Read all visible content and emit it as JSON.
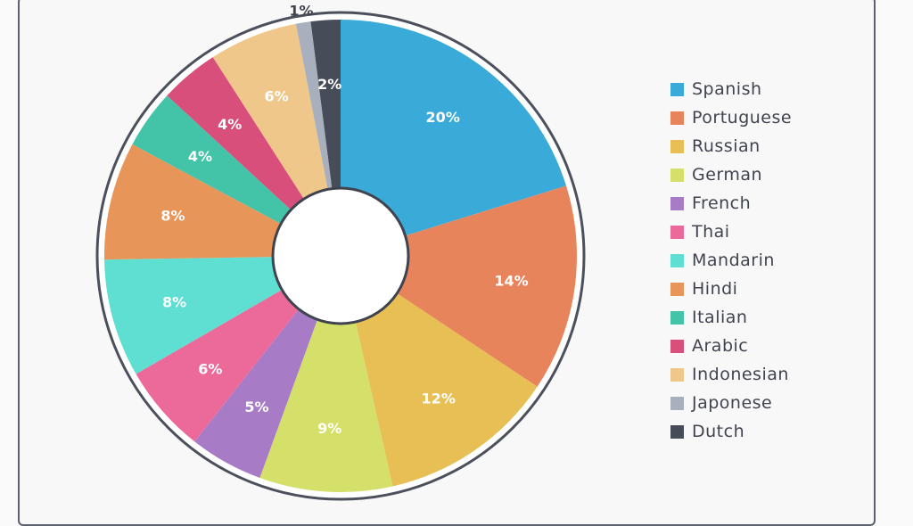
{
  "chart_data": {
    "type": "pie",
    "style": "donut",
    "title": "",
    "legend_position": "right",
    "start": "top, clockwise",
    "slices": [
      {
        "name": "Spanish",
        "value": 20,
        "label": "20%",
        "color": "#3aaad8"
      },
      {
        "name": "Portuguese",
        "value": 14,
        "label": "14%",
        "color": "#e8845c"
      },
      {
        "name": "Russian",
        "value": 12,
        "label": "12%",
        "color": "#e8bf55"
      },
      {
        "name": "German",
        "value": 9,
        "label": "9%",
        "color": "#d4e06a"
      },
      {
        "name": "French",
        "value": 5,
        "label": "5%",
        "color": "#a77bc6"
      },
      {
        "name": "Thai",
        "value": 6,
        "label": "6%",
        "color": "#ec6a9a"
      },
      {
        "name": "Mandarin",
        "value": 8,
        "label": "8%",
        "color": "#5fded2"
      },
      {
        "name": "Hindi",
        "value": 8,
        "label": "8%",
        "color": "#e8955a"
      },
      {
        "name": "Italian",
        "value": 4,
        "label": "4%",
        "color": "#43c3a8"
      },
      {
        "name": "Arabic",
        "value": 4,
        "label": "4%",
        "color": "#d94f7c"
      },
      {
        "name": "Indonesian",
        "value": 6,
        "label": "6%",
        "color": "#f0c78a"
      },
      {
        "name": "Japonese",
        "value": 1,
        "label": "1%",
        "color": "#a8b0bd"
      },
      {
        "name": "Dutch",
        "value": 2,
        "label": "2%",
        "color": "#474c59"
      }
    ]
  }
}
